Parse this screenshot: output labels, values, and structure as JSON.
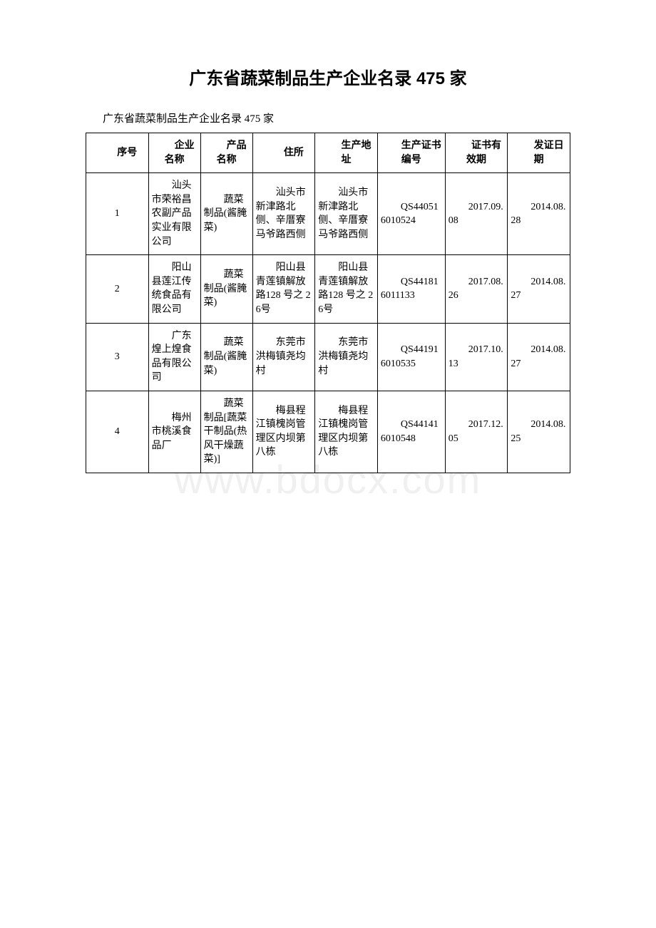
{
  "title": "广东省蔬菜制品生产企业名录 475 家",
  "subtitle": "广东省蔬菜制品生产企业名录 475 家",
  "watermark": "www.bdocx.com",
  "table": {
    "headers": {
      "seq": "序号",
      "company": "企业名称",
      "product": "产品名称",
      "address": "住所",
      "prodAddress": "生产地址",
      "certNo": "生产证书编号",
      "validity": "证书有效期",
      "issueDate": "发证日期"
    },
    "rows": [
      {
        "seq": "1",
        "company": "汕头市荣裕昌农副产品实业有限公司",
        "product": "蔬菜制品(酱腌菜)",
        "address": "汕头市新津路北侧、辛厝寮马爷路西侧",
        "prodAddress": "汕头市新津路北侧、辛厝寮马爷路西侧",
        "certNo": "QS440516010524",
        "validity": "2017.09.08",
        "issueDate": "2014.08.28"
      },
      {
        "seq": "2",
        "company": "阳山县莲江传统食品有限公司",
        "product": "蔬菜制品(酱腌菜)",
        "address": "阳山县青莲镇解放路128 号之 26号",
        "prodAddress": "阳山县青莲镇解放路128 号之 26号",
        "certNo": "QS441816011133",
        "validity": "2017.08.26",
        "issueDate": "2014.08.27"
      },
      {
        "seq": "3",
        "company": "广东煌上煌食品有限公司",
        "product": "蔬菜制品(酱腌菜)",
        "address": "东莞市洪梅镇尧均村",
        "prodAddress": "东莞市洪梅镇尧均村",
        "certNo": "QS441916010535",
        "validity": "2017.10.13",
        "issueDate": "2014.08.27"
      },
      {
        "seq": "4",
        "company": "梅州市桃溪食品厂",
        "product": "蔬菜制品[蔬菜干制品(热风干燥蔬菜)]",
        "address": "梅县程江镇槐岗管理区内坝第八栋",
        "prodAddress": "梅县程江镇槐岗管理区内坝第八栋",
        "certNo": "QS441416010548",
        "validity": "2017.12.05",
        "issueDate": "2014.08.25"
      }
    ]
  }
}
